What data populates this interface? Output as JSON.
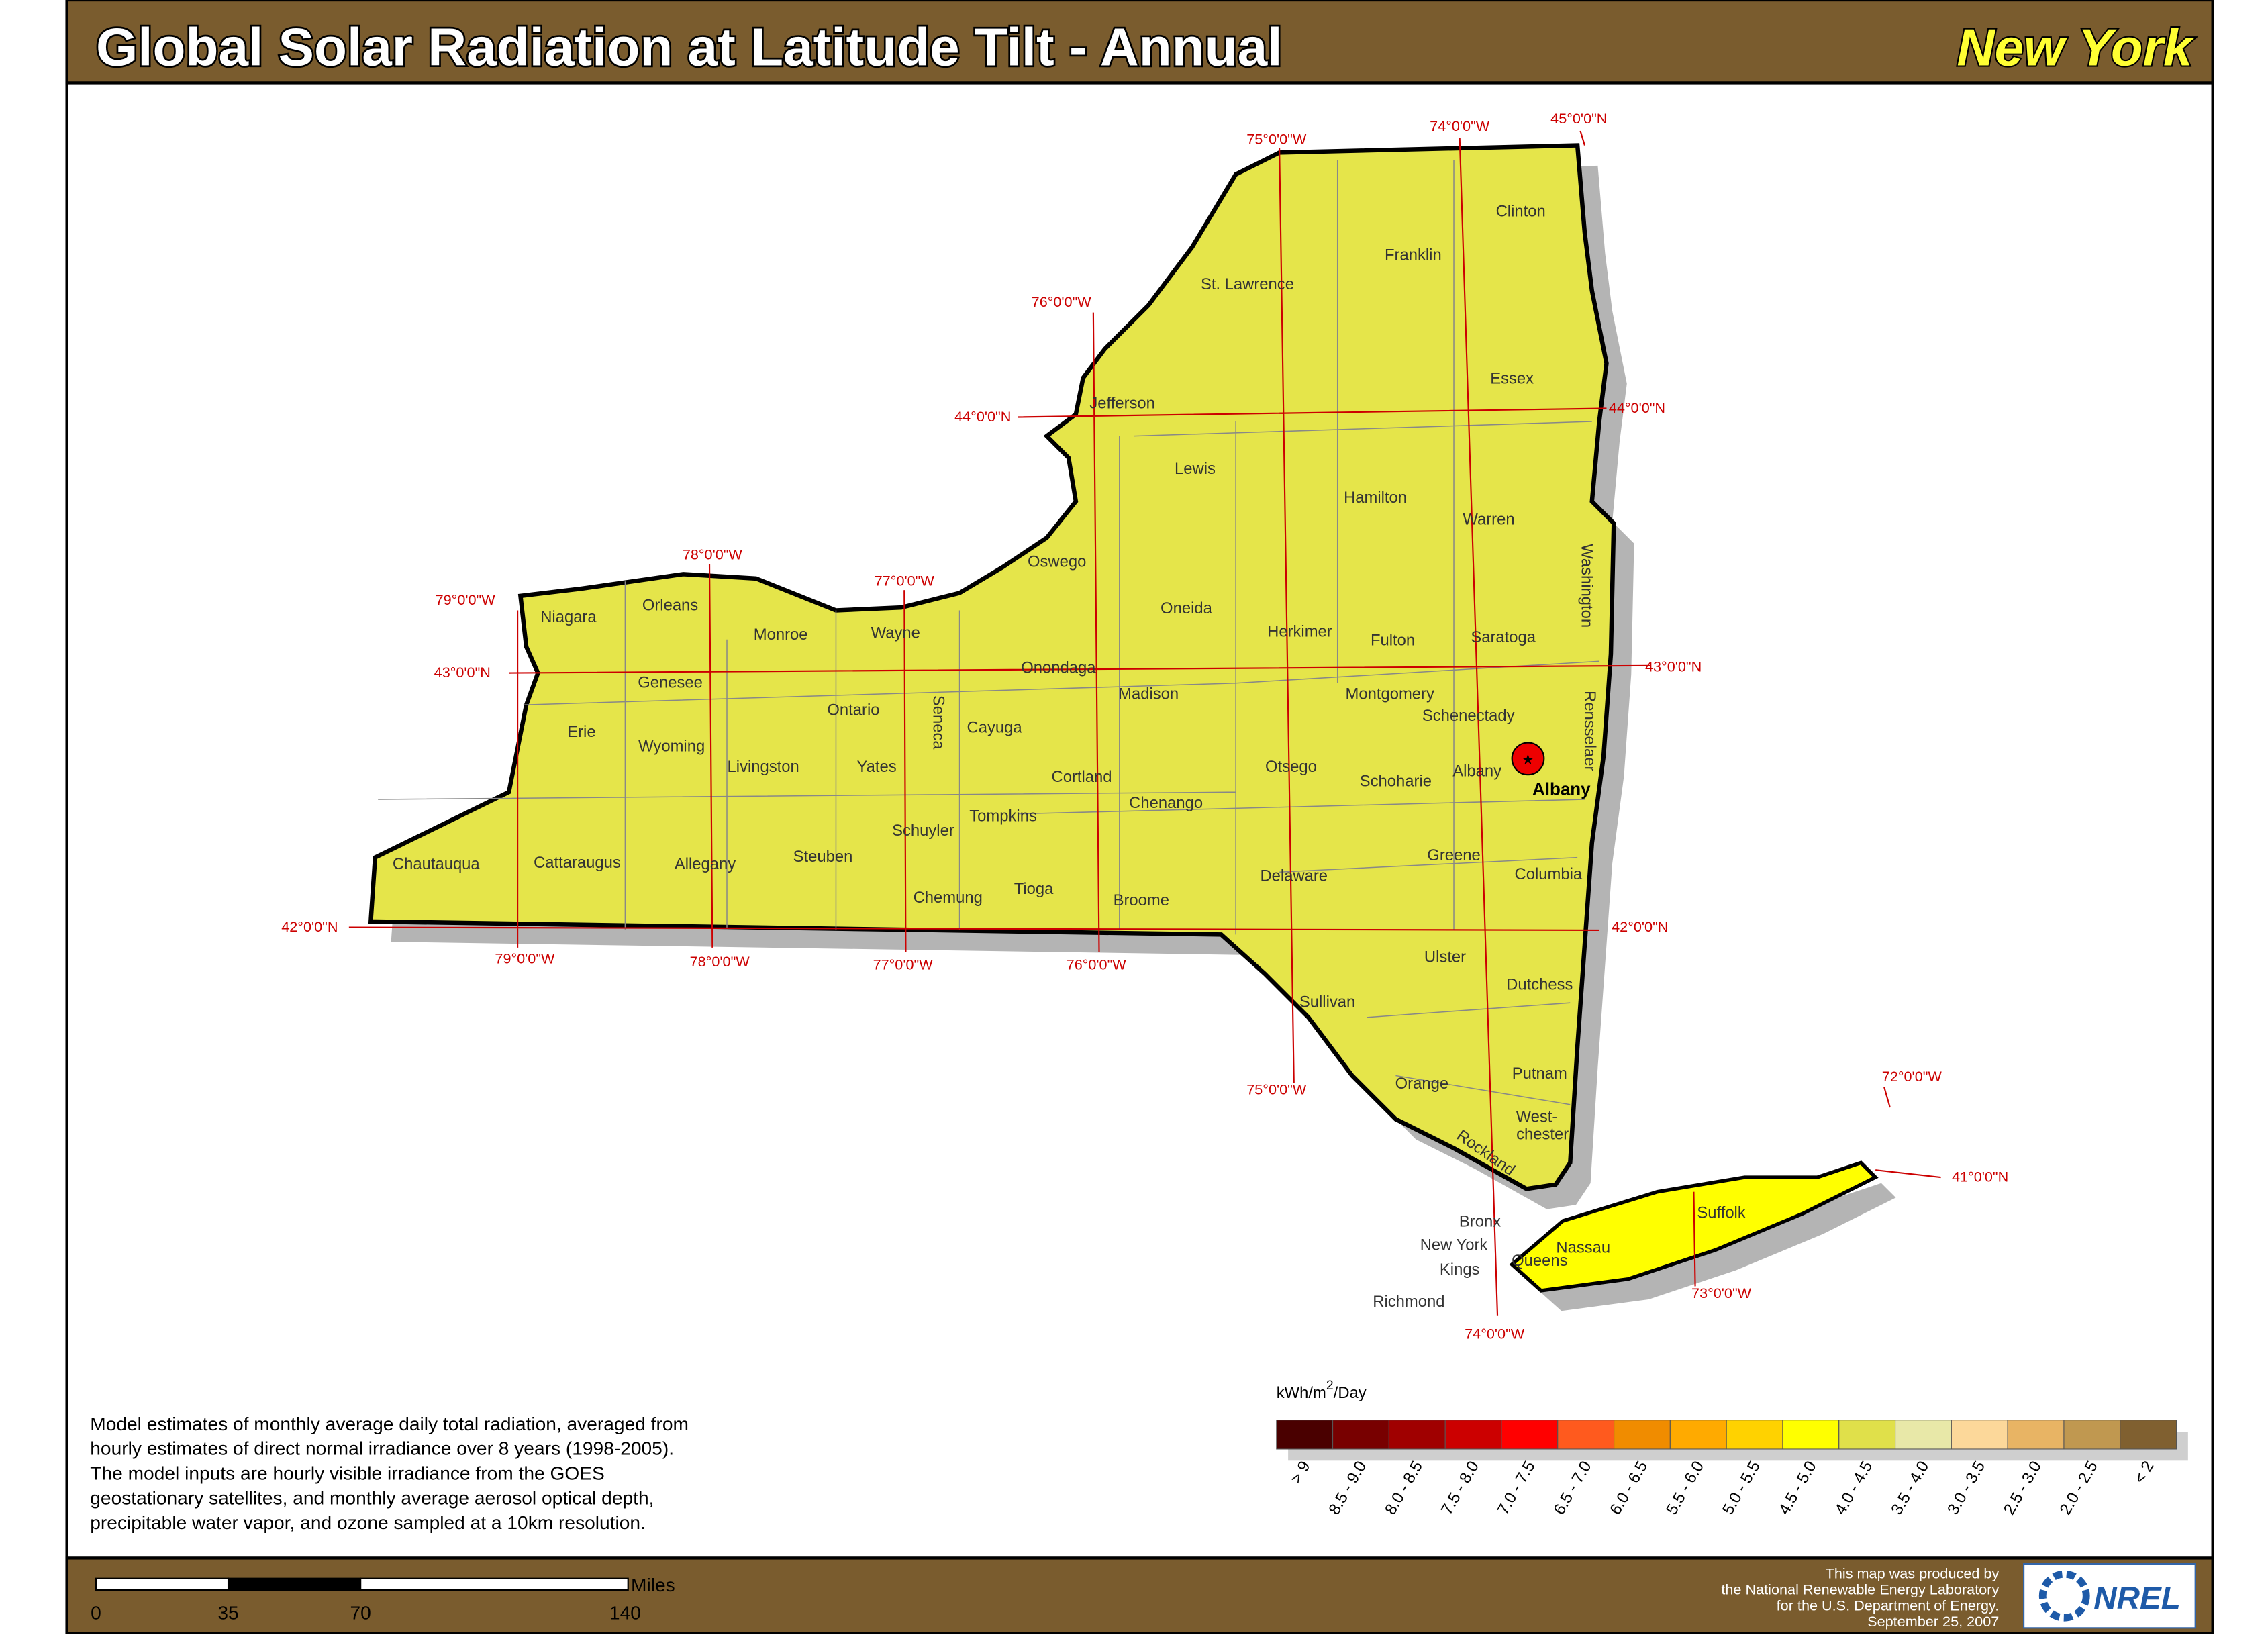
{
  "header": {
    "title": "Global Solar Radiation at Latitude Tilt - Annual",
    "state": "New York"
  },
  "counties": [
    "Clinton",
    "Franklin",
    "St. Lawrence",
    "Essex",
    "Jefferson",
    "Lewis",
    "Hamilton",
    "Warren",
    "Washington",
    "Oswego",
    "Oneida",
    "Herkimer",
    "Fulton",
    "Saratoga",
    "Niagara",
    "Orleans",
    "Monroe",
    "Wayne",
    "Genesee",
    "Onondaga",
    "Madison",
    "Montgomery",
    "Schenectady",
    "Rensselaer",
    "Erie",
    "Ontario",
    "Seneca",
    "Cayuga",
    "Wyoming",
    "Livingston",
    "Yates",
    "Cortland",
    "Otsego",
    "Schoharie",
    "Albany",
    "Chenango",
    "Tompkins",
    "Schuyler",
    "Greene",
    "Chautauqua",
    "Cattaraugus",
    "Allegany",
    "Steuben",
    "Delaware",
    "Columbia",
    "Chemung",
    "Tioga",
    "Broome",
    "Ulster",
    "Dutchess",
    "Sullivan",
    "Putnam",
    "Orange",
    "West-",
    "chester",
    "Rockland",
    "Suffolk",
    "Bronx",
    "Nassau",
    "New York",
    "Queens",
    "Kings",
    "Richmond"
  ],
  "capital": "Albany",
  "graticule": [
    "75°0'0\"W",
    "74°0'0\"W",
    "45°0'0\"N",
    "76°0'0\"W",
    "44°0'0\"N",
    "44°0'0\"N",
    "78°0'0\"W",
    "77°0'0\"W",
    "79°0'0\"W",
    "43°0'0\"N",
    "43°0'0\"N",
    "42°0'0\"N",
    "42°0'0\"N",
    "79°0'0\"W",
    "78°0'0\"W",
    "77°0'0\"W",
    "76°0'0\"W",
    "75°0'0\"W",
    "72°0'0\"W",
    "41°0'0\"N",
    "73°0'0\"W",
    "74°0'0\"W"
  ],
  "legend": {
    "unit": {
      "base": "kWh/m",
      "sup": "2",
      "rest": "/Day"
    },
    "classes": [
      {
        "label": "> 9",
        "color": "#4a0000"
      },
      {
        "label": "8.5 - 9.0",
        "color": "#780000"
      },
      {
        "label": "8.0 - 8.5",
        "color": "#a00000"
      },
      {
        "label": "7.5 - 8.0",
        "color": "#cc0000"
      },
      {
        "label": "7.0 - 7.5",
        "color": "#ff0000"
      },
      {
        "label": "6.5 - 7.0",
        "color": "#ff5a1e"
      },
      {
        "label": "6.0 - 6.5",
        "color": "#f08c00"
      },
      {
        "label": "5.5 - 6.0",
        "color": "#ffaa00"
      },
      {
        "label": "5.0 - 5.5",
        "color": "#ffd200"
      },
      {
        "label": "4.5 - 5.0",
        "color": "#ffff00"
      },
      {
        "label": "4.0 - 4.5",
        "color": "#e0e04a"
      },
      {
        "label": "3.5 - 4.0",
        "color": "#e8e8a8"
      },
      {
        "label": "3.0 - 3.5",
        "color": "#fcd89a"
      },
      {
        "label": "2.5 - 3.0",
        "color": "#e8b464"
      },
      {
        "label": "2.0 - 2.5",
        "color": "#c09850"
      },
      {
        "label": "< 2",
        "color": "#806030"
      }
    ]
  },
  "note": [
    "Model estimates of monthly average daily total radiation, averaged from",
    "hourly estimates of direct normal irradiance over 8 years (1998-2005).",
    "The model inputs are hourly visible irradiance from the GOES",
    "geostationary satellites, and monthly average aerosol optical depth,",
    "precipitable water vapor, and ozone sampled at a 10km resolution."
  ],
  "scale": {
    "ticks": [
      0,
      35,
      70,
      140
    ],
    "unit": "Miles"
  },
  "credits": [
    "This map was produced by",
    "the National Renewable Energy Laboratory",
    "for the U.S. Department of Energy.",
    "September 25, 2007"
  ],
  "logo": "NREL"
}
